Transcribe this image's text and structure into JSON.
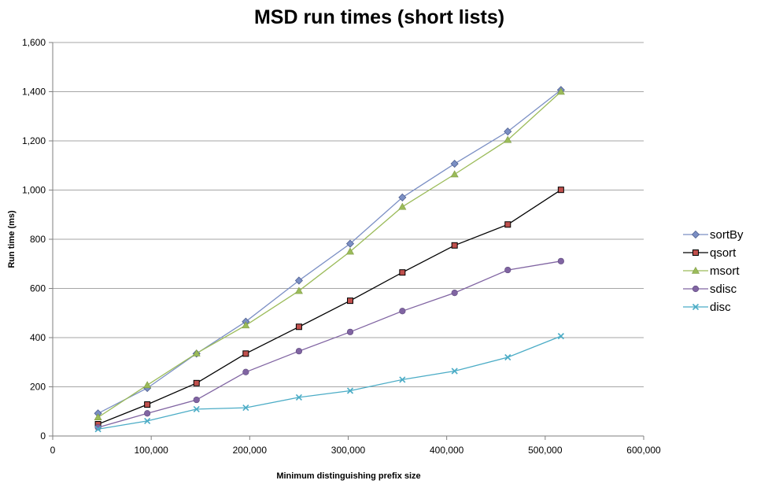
{
  "chart_data": {
    "type": "line",
    "title": "MSD run times (short lists)",
    "xlabel": "Minimum distinguishing prefix size",
    "ylabel": "Run time (ms)",
    "xlim": [
      0,
      600000
    ],
    "ylim": [
      0,
      1600
    ],
    "xticks": [
      0,
      100000,
      200000,
      300000,
      400000,
      500000,
      600000
    ],
    "xtick_labels": [
      "0",
      "100,000",
      "200,000",
      "300,000",
      "400,000",
      "500,000",
      "600,000"
    ],
    "yticks": [
      0,
      200,
      400,
      600,
      800,
      1000,
      1200,
      1400,
      1600
    ],
    "ytick_labels": [
      "0",
      "200",
      "400",
      "600",
      "800",
      "1,000",
      "1,200",
      "1,400",
      "1,600"
    ],
    "grid": "horizontal",
    "legend_position": "right",
    "x": [
      46000,
      96000,
      146000,
      196000,
      250000,
      302000,
      355000,
      408000,
      462000,
      516000
    ],
    "series": [
      {
        "name": "sortBy",
        "color": "#7b8fc4",
        "marker": "diamond",
        "values": [
          92,
          195,
          335,
          465,
          632,
          782,
          970,
          1107,
          1238,
          1407
        ]
      },
      {
        "name": "qsort",
        "color": "#000000",
        "marker": "square",
        "fill": "#c0504d",
        "values": [
          48,
          128,
          215,
          335,
          444,
          550,
          665,
          775,
          860,
          1001
        ]
      },
      {
        "name": "msort",
        "color": "#9bbb59",
        "marker": "triangle",
        "values": [
          76,
          207,
          336,
          450,
          590,
          750,
          932,
          1064,
          1204,
          1400
        ]
      },
      {
        "name": "sdisc",
        "color": "#8064a2",
        "marker": "circle",
        "values": [
          35,
          92,
          147,
          260,
          345,
          423,
          508,
          582,
          675,
          711
        ]
      },
      {
        "name": "disc",
        "color": "#4bacc6",
        "marker": "x",
        "values": [
          28,
          61,
          109,
          115,
          157,
          184,
          229,
          264,
          320,
          406
        ]
      }
    ]
  }
}
